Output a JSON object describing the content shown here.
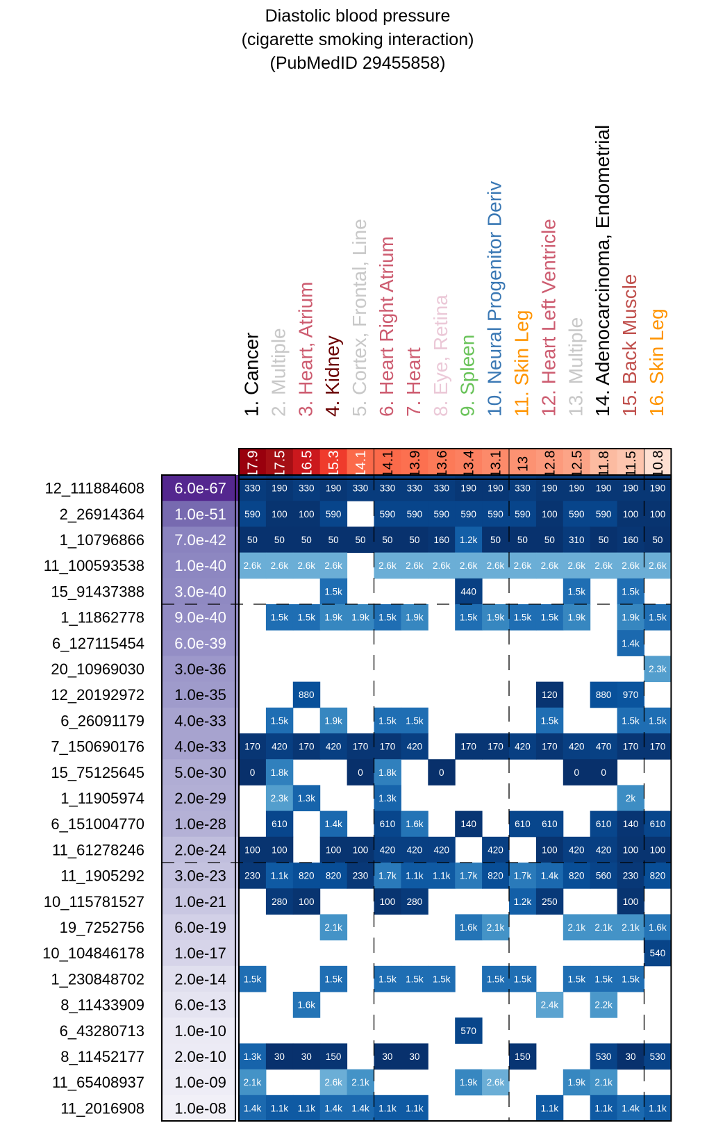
{
  "chart_data": {
    "type": "heatmap",
    "title": [
      "Diastolic blood pressure",
      "(cigarette smoking interaction)",
      "(PubMedID 29455858)"
    ],
    "columns": [
      {
        "label": "1. Cancer",
        "color": "#000000",
        "score": "17.9",
        "score_color": "#99000d"
      },
      {
        "label": "2. Multiple",
        "color": "#c8c8c8",
        "score": "17.5",
        "score_color": "#a50f15"
      },
      {
        "label": "3. Heart, Atrium",
        "color": "#cd5c70",
        "score": "16.5",
        "score_color": "#cb181d"
      },
      {
        "label": "4. Kidney",
        "color": "#6b0000",
        "score": "15.3",
        "score_color": "#ef3b2c"
      },
      {
        "label": "5. Cortex, Frontal, Line",
        "color": "#c8c8c8",
        "score": "14.1",
        "score_color": "#fb6a4a"
      },
      {
        "label": "6. Heart Right Atrium",
        "color": "#cd5c70",
        "score": "14.1",
        "score_color": "#fb6a4a"
      },
      {
        "label": "7. Heart",
        "color": "#cd5c70",
        "score": "13.9",
        "score_color": "#fc7050"
      },
      {
        "label": "8. Eye, Retina",
        "color": "#ebc8d7",
        "score": "13.6",
        "score_color": "#fc7a58"
      },
      {
        "label": "9. Spleen",
        "color": "#6ac35a",
        "score": "13.4",
        "score_color": "#fc8060"
      },
      {
        "label": "10. Neural Progenitor Deriv",
        "color": "#3a78b4",
        "score": "13.1",
        "score_color": "#fc8a6a"
      },
      {
        "label": "11. Skin Leg",
        "color": "#ff9400",
        "score": "13",
        "score_color": "#fc9272"
      },
      {
        "label": "12. Heart Left Ventricle",
        "color": "#cd5c70",
        "score": "12.8",
        "score_color": "#fc9a7c"
      },
      {
        "label": "13. Multiple",
        "color": "#c8c8c8",
        "score": "12.5",
        "score_color": "#fca487"
      },
      {
        "label": "14. Adenocarcinoma, Endometrial",
        "color": "#000000",
        "score": "11.8",
        "score_color": "#fcbba1"
      },
      {
        "label": "15. Back Muscle",
        "color": "#c0504d",
        "score": "11.5",
        "score_color": "#fdc5ae"
      },
      {
        "label": "16. Skin Leg",
        "color": "#ff9400",
        "score": "10.8",
        "score_color": "#fee0d2"
      }
    ],
    "rows": [
      {
        "snp": "12_111884608",
        "pvalue": "6.0e-67",
        "pcolor": "#54278f",
        "ptext": "#ffffff"
      },
      {
        "snp": "2_26914364",
        "pvalue": "1.0e-51",
        "pcolor": "#776ab0",
        "ptext": "#ffffff"
      },
      {
        "snp": "1_10796866",
        "pvalue": "7.0e-42",
        "pcolor": "#8a83bf",
        "ptext": "#ffffff"
      },
      {
        "snp": "11_100593538",
        "pvalue": "1.0e-40",
        "pcolor": "#8d87c1",
        "ptext": "#ffffff"
      },
      {
        "snp": "15_91437388",
        "pvalue": "3.0e-40",
        "pcolor": "#8f89c2",
        "ptext": "#ffffff"
      },
      {
        "snp": "1_11862778",
        "pvalue": "9.0e-40",
        "pcolor": "#918bc3",
        "ptext": "#ffffff"
      },
      {
        "snp": "6_127115454",
        "pvalue": "6.0e-39",
        "pcolor": "#948ec5",
        "ptext": "#ffffff"
      },
      {
        "snp": "20_10969030",
        "pvalue": "3.0e-36",
        "pcolor": "#9d98ca",
        "ptext": "#000000"
      },
      {
        "snp": "12_20192972",
        "pvalue": "1.0e-35",
        "pcolor": "#9f9bcb",
        "ptext": "#000000"
      },
      {
        "snp": "6_26091179",
        "pvalue": "4.0e-33",
        "pcolor": "#a7a3cf",
        "ptext": "#000000"
      },
      {
        "snp": "7_150690176",
        "pvalue": "4.0e-33",
        "pcolor": "#a7a3cf",
        "ptext": "#000000"
      },
      {
        "snp": "15_75125645",
        "pvalue": "5.0e-30",
        "pcolor": "#b0add4",
        "ptext": "#000000"
      },
      {
        "snp": "1_11905974",
        "pvalue": "2.0e-29",
        "pcolor": "#b2afd5",
        "ptext": "#000000"
      },
      {
        "snp": "6_151004770",
        "pvalue": "1.0e-28",
        "pcolor": "#b4b1d6",
        "ptext": "#000000"
      },
      {
        "snp": "11_61278246",
        "pvalue": "2.0e-24",
        "pcolor": "#c0bedd",
        "ptext": "#000000"
      },
      {
        "snp": "11_1905292",
        "pvalue": "3.0e-23",
        "pcolor": "#c4c2df",
        "ptext": "#000000"
      },
      {
        "snp": "10_115781527",
        "pvalue": "1.0e-21",
        "pcolor": "#c9c7e2",
        "ptext": "#000000"
      },
      {
        "snp": "19_7252756",
        "pvalue": "6.0e-19",
        "pcolor": "#d2d0e7",
        "ptext": "#000000"
      },
      {
        "snp": "10_104846178",
        "pvalue": "1.0e-17",
        "pcolor": "#d6d4e9",
        "ptext": "#000000"
      },
      {
        "snp": "1_230848702",
        "pvalue": "2.0e-14",
        "pcolor": "#e0dfee",
        "ptext": "#000000"
      },
      {
        "snp": "8_11433909",
        "pvalue": "6.0e-13",
        "pcolor": "#e5e4f1",
        "ptext": "#000000"
      },
      {
        "snp": "6_43280713",
        "pvalue": "1.0e-10",
        "pcolor": "#ebeaf4",
        "ptext": "#000000"
      },
      {
        "snp": "8_11452177",
        "pvalue": "2.0e-10",
        "pcolor": "#ecebf5",
        "ptext": "#000000"
      },
      {
        "snp": "11_65408937",
        "pvalue": "1.0e-09",
        "pcolor": "#eeedf6",
        "ptext": "#000000"
      },
      {
        "snp": "11_2016908",
        "pvalue": "1.0e-08",
        "pcolor": "#f1f0f7",
        "ptext": "#000000"
      }
    ],
    "cells": [
      [
        "330",
        "190",
        "330",
        "190",
        "330",
        "330",
        "330",
        "330",
        "190",
        "190",
        "330",
        "190",
        "190",
        "190",
        "190",
        "190"
      ],
      [
        "590",
        "100",
        "100",
        "590",
        "",
        "590",
        "590",
        "590",
        "590",
        "590",
        "590",
        "100",
        "590",
        "590",
        "100",
        "100"
      ],
      [
        "50",
        "50",
        "50",
        "50",
        "50",
        "50",
        "50",
        "160",
        "1.2k",
        "50",
        "50",
        "50",
        "310",
        "50",
        "160",
        "50"
      ],
      [
        "2.6k",
        "2.6k",
        "2.6k",
        "2.6k",
        "",
        "2.6k",
        "2.6k",
        "2.6k",
        "2.6k",
        "2.6k",
        "2.6k",
        "2.6k",
        "2.6k",
        "2.6k",
        "2.6k",
        "2.6k"
      ],
      [
        "",
        "",
        "",
        "1.5k",
        "",
        "",
        "",
        "",
        "440",
        "",
        "",
        "",
        "1.5k",
        "",
        "1.5k",
        ""
      ],
      [
        "",
        "1.5k",
        "1.5k",
        "1.9k",
        "1.9k",
        "1.5k",
        "1.9k",
        "",
        "1.5k",
        "1.9k",
        "1.5k",
        "1.5k",
        "1.9k",
        "",
        "1.9k",
        "1.5k"
      ],
      [
        "",
        "",
        "",
        "",
        "",
        "",
        "",
        "",
        "",
        "",
        "",
        "",
        "",
        "",
        "1.4k",
        ""
      ],
      [
        "",
        "",
        "",
        "",
        "",
        "",
        "",
        "",
        "",
        "",
        "",
        "",
        "",
        "",
        "",
        "2.3k"
      ],
      [
        "",
        "",
        "880",
        "",
        "",
        "",
        "",
        "",
        "",
        "",
        "",
        "120",
        "",
        "880",
        "970",
        ""
      ],
      [
        "",
        "1.5k",
        "",
        "1.9k",
        "",
        "1.5k",
        "1.5k",
        "",
        "",
        "",
        "",
        "1.5k",
        "",
        "",
        "1.5k",
        "1.5k"
      ],
      [
        "170",
        "420",
        "170",
        "420",
        "170",
        "170",
        "420",
        "",
        "170",
        "170",
        "420",
        "170",
        "420",
        "470",
        "170",
        "170"
      ],
      [
        "0",
        "1.8k",
        "",
        "",
        "0",
        "1.8k",
        "",
        "0",
        "",
        "",
        "",
        "",
        "0",
        "0",
        "",
        ""
      ],
      [
        "",
        "2.3k",
        "1.3k",
        "",
        "",
        "1.3k",
        "",
        "",
        "",
        "",
        "",
        "",
        "",
        "",
        "2k",
        ""
      ],
      [
        "",
        "610",
        "",
        "1.4k",
        "",
        "610",
        "1.6k",
        "",
        "140",
        "",
        "610",
        "610",
        "",
        "610",
        "140",
        "610"
      ],
      [
        "100",
        "100",
        "",
        "100",
        "100",
        "420",
        "420",
        "420",
        "",
        "420",
        "",
        "100",
        "420",
        "420",
        "100",
        "100"
      ],
      [
        "230",
        "1.1k",
        "820",
        "820",
        "230",
        "1.7k",
        "1.1k",
        "1.1k",
        "1.7k",
        "820",
        "1.7k",
        "1.4k",
        "820",
        "560",
        "230",
        "820"
      ],
      [
        "",
        "280",
        "100",
        "",
        "",
        "100",
        "280",
        "",
        "",
        "",
        "1.2k",
        "250",
        "",
        "",
        "100",
        ""
      ],
      [
        "",
        "",
        "",
        "2.1k",
        "",
        "",
        "",
        "",
        "1.6k",
        "2.1k",
        "",
        "",
        "2.1k",
        "2.1k",
        "2.1k",
        "1.6k"
      ],
      [
        "",
        "",
        "",
        "",
        "",
        "",
        "",
        "",
        "",
        "",
        "",
        "",
        "",
        "",
        "",
        "540"
      ],
      [
        "1.5k",
        "",
        "",
        "1.5k",
        "",
        "1.5k",
        "1.5k",
        "1.5k",
        "",
        "1.5k",
        "1.5k",
        "",
        "1.5k",
        "1.5k",
        "1.5k",
        ""
      ],
      [
        "",
        "",
        "1.6k",
        "",
        "",
        "",
        "",
        "",
        "",
        "",
        "",
        "2.4k",
        "",
        "2.2k",
        "",
        ""
      ],
      [
        "",
        "",
        "",
        "",
        "",
        "",
        "",
        "",
        "570",
        "",
        "",
        "",
        "",
        "",
        "",
        ""
      ],
      [
        "1.3k",
        "30",
        "30",
        "150",
        "",
        "30",
        "30",
        "",
        "",
        "",
        "150",
        "",
        "",
        "530",
        "30",
        "530"
      ],
      [
        "2.1k",
        "",
        "",
        "2.6k",
        "2.1k",
        "",
        "",
        "",
        "1.9k",
        "2.6k",
        "",
        "",
        "1.9k",
        "2.1k",
        "",
        ""
      ],
      [
        "1.4k",
        "1.1k",
        "1.1k",
        "1.4k",
        "1.4k",
        "1.1k",
        "1.1k",
        "",
        "",
        "",
        "",
        "1.1k",
        "",
        "1.1k",
        "1.4k",
        "1.1k"
      ]
    ],
    "column_group_breaks": [
      5,
      10,
      15
    ],
    "row_group_breaks": [
      5,
      15
    ],
    "cell_color_scale": {
      "low": "#08306b",
      "mid": "#2171b5",
      "high": "#6baed6",
      "empty": "#ffffff"
    }
  }
}
